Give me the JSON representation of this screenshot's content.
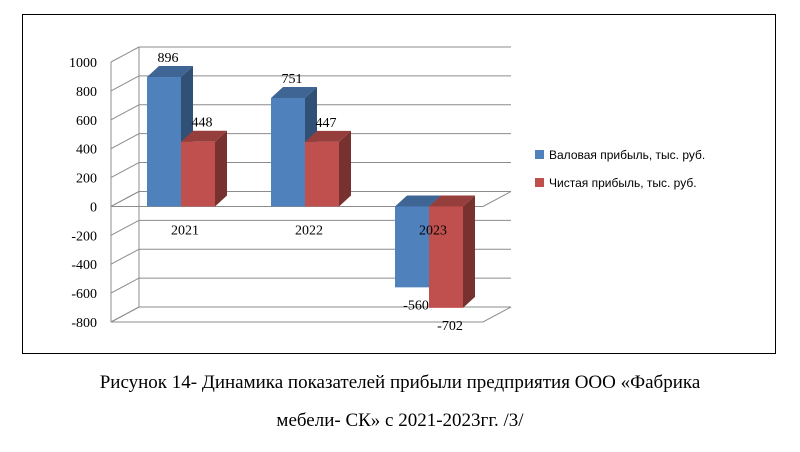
{
  "chart_data": {
    "type": "bar",
    "categories": [
      "2021",
      "2022",
      "2023"
    ],
    "series": [
      {
        "name": "Валовая прибыль, тыс. руб.",
        "values": [
          896,
          751,
          -560
        ],
        "color": "#4F81BD"
      },
      {
        "name": "Чистая прибыль, тыс. руб.",
        "values": [
          448,
          447,
          -702
        ],
        "color": "#C0504D"
      }
    ],
    "data_labels": [
      [
        "896",
        "751",
        "-560"
      ],
      [
        "448",
        "447",
        "-702"
      ]
    ],
    "ylim": [
      -800,
      1000
    ],
    "yticks": [
      1000,
      800,
      600,
      400,
      200,
      0,
      -200,
      -400,
      -600,
      -800
    ],
    "ytick_labels": [
      "1000",
      "800",
      "600",
      "400",
      "200",
      "0",
      "-200",
      "-400",
      "-600",
      "-800"
    ],
    "grid": true,
    "style": "3d-clustered-column",
    "legend_position": "right",
    "title": "",
    "xlabel": "",
    "ylabel": ""
  },
  "caption": {
    "line1": "Рисунок 14- Динамика показателей прибыли предприятия ООО «Фабрика",
    "line2": "мебели- СК» с 2021-2023гг. /3/"
  }
}
